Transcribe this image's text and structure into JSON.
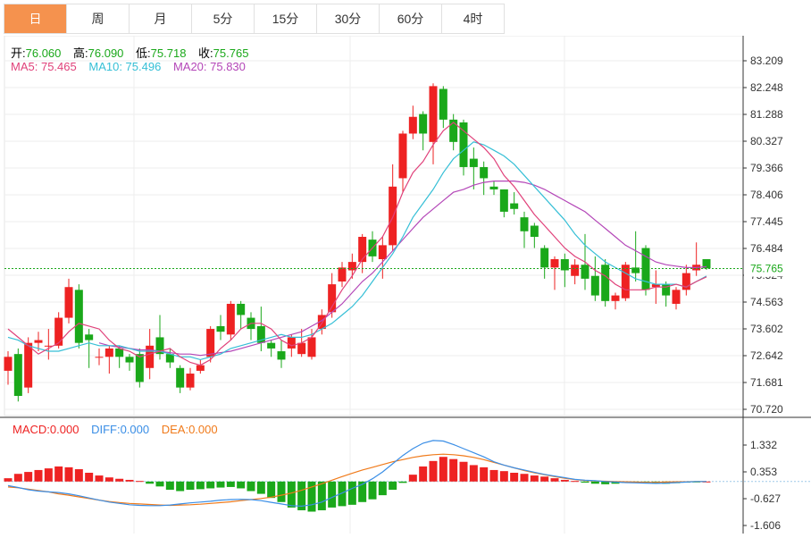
{
  "tabs": [
    {
      "label": "日",
      "active": true
    },
    {
      "label": "周",
      "active": false
    },
    {
      "label": "月",
      "active": false
    },
    {
      "label": "5分",
      "active": false
    },
    {
      "label": "15分",
      "active": false
    },
    {
      "label": "30分",
      "active": false
    },
    {
      "label": "60分",
      "active": false
    },
    {
      "label": "4时",
      "active": false
    }
  ],
  "ohlc_info": {
    "open_label": "开:",
    "open": "76.060",
    "high_label": "高:",
    "high": "76.090",
    "low_label": "低:",
    "low": "75.718",
    "close_label": "收:",
    "close": "75.765"
  },
  "ma_info": {
    "ma5_label": "MA5: ",
    "ma5": "75.465",
    "ma10_label": "MA10: ",
    "ma10": "75.496",
    "ma20_label": "MA20: ",
    "ma20": "75.830"
  },
  "macd_info": {
    "macd_label": "MACD:",
    "macd": "0.000",
    "diff_label": "DIFF:",
    "diff": "0.000",
    "dea_label": "DEA:",
    "dea": "0.000"
  },
  "colors": {
    "up": "#ee2222",
    "down": "#1aa81a",
    "ma5": "#e0417a",
    "ma10": "#35bfd6",
    "ma20": "#b447b8",
    "diff": "#3a8ee6",
    "dea": "#f07a1a",
    "price_line": "#1aa81a",
    "grid": "#eeeeee",
    "axis": "#333333"
  },
  "chart_data": {
    "type": "candlestick",
    "price_axis": {
      "ticks": [
        "83.209",
        "82.248",
        "81.288",
        "80.327",
        "79.366",
        "78.406",
        "77.445",
        "76.484",
        "75.524",
        "74.563",
        "73.602",
        "72.642",
        "71.681",
        "70.720"
      ],
      "range": [
        70.72,
        83.209
      ]
    },
    "current_price": "75.765",
    "candles": [
      [
        72.1,
        72.6,
        71.6,
        72.8
      ],
      [
        72.7,
        71.2,
        71.0,
        72.9
      ],
      [
        71.5,
        73.1,
        71.3,
        73.3
      ],
      [
        73.1,
        73.2,
        72.8,
        73.5
      ],
      [
        73.0,
        73.0,
        72.5,
        73.6
      ],
      [
        73.0,
        74.0,
        72.9,
        74.2
      ],
      [
        74.0,
        75.1,
        73.8,
        75.4
      ],
      [
        75.0,
        73.1,
        72.9,
        75.2
      ],
      [
        73.4,
        73.2,
        72.2,
        73.6
      ],
      [
        72.6,
        72.6,
        72.3,
        72.9
      ],
      [
        72.6,
        72.9,
        72.0,
        73.0
      ],
      [
        72.9,
        72.6,
        72.2,
        73.0
      ],
      [
        72.6,
        72.4,
        72.1,
        72.7
      ],
      [
        72.7,
        71.7,
        71.5,
        72.9
      ],
      [
        72.2,
        73.0,
        71.8,
        73.6
      ],
      [
        73.3,
        72.7,
        72.5,
        74.1
      ],
      [
        72.7,
        72.4,
        72.2,
        72.9
      ],
      [
        72.2,
        71.5,
        71.3,
        72.3
      ],
      [
        71.5,
        72.0,
        71.4,
        72.2
      ],
      [
        72.1,
        72.3,
        72.0,
        72.5
      ],
      [
        72.6,
        73.6,
        72.4,
        73.7
      ],
      [
        73.7,
        73.5,
        73.2,
        74.1
      ],
      [
        73.4,
        74.5,
        73.2,
        74.6
      ],
      [
        74.5,
        74.1,
        73.6,
        74.6
      ],
      [
        74.0,
        73.6,
        73.2,
        74.2
      ],
      [
        73.7,
        73.1,
        72.8,
        74.4
      ],
      [
        73.1,
        72.9,
        72.6,
        73.2
      ],
      [
        72.8,
        72.5,
        72.2,
        73.2
      ],
      [
        72.9,
        73.3,
        72.6,
        73.4
      ],
      [
        72.7,
        73.1,
        72.6,
        73.6
      ],
      [
        72.6,
        73.3,
        72.5,
        73.6
      ],
      [
        73.6,
        74.1,
        73.4,
        74.3
      ],
      [
        74.2,
        75.2,
        74.0,
        75.6
      ],
      [
        75.3,
        75.8,
        75.1,
        76.0
      ],
      [
        75.7,
        76.0,
        75.4,
        76.3
      ],
      [
        76.0,
        76.9,
        75.6,
        77.0
      ],
      [
        76.8,
        76.2,
        76.0,
        77.1
      ],
      [
        76.1,
        76.6,
        75.4,
        76.9
      ],
      [
        76.6,
        78.7,
        76.4,
        79.5
      ],
      [
        79.0,
        80.6,
        78.5,
        80.7
      ],
      [
        80.6,
        81.2,
        80.4,
        81.6
      ],
      [
        81.3,
        80.6,
        80.0,
        81.4
      ],
      [
        80.3,
        82.3,
        79.5,
        82.4
      ],
      [
        82.2,
        81.1,
        80.8,
        82.3
      ],
      [
        81.1,
        80.3,
        80.0,
        81.3
      ],
      [
        81.0,
        79.4,
        79.1,
        81.1
      ],
      [
        79.7,
        79.4,
        78.6,
        80.1
      ],
      [
        79.4,
        79.0,
        78.4,
        79.6
      ],
      [
        78.7,
        78.6,
        78.4,
        78.9
      ],
      [
        78.6,
        77.8,
        77.6,
        78.6
      ],
      [
        78.1,
        77.9,
        77.7,
        78.5
      ],
      [
        77.6,
        77.1,
        76.5,
        77.8
      ],
      [
        77.3,
        76.9,
        76.5,
        77.4
      ],
      [
        76.5,
        75.8,
        75.4,
        76.6
      ],
      [
        75.8,
        76.1,
        75.0,
        76.2
      ],
      [
        76.1,
        75.7,
        75.1,
        76.3
      ],
      [
        75.5,
        75.9,
        75.2,
        76.1
      ],
      [
        75.9,
        75.4,
        75.0,
        77.0
      ],
      [
        75.5,
        74.8,
        74.6,
        76.2
      ],
      [
        75.9,
        74.6,
        74.4,
        76.1
      ],
      [
        74.6,
        74.8,
        74.3,
        74.9
      ],
      [
        74.7,
        75.9,
        74.6,
        76.0
      ],
      [
        75.8,
        75.6,
        75.3,
        77.1
      ],
      [
        76.5,
        75.0,
        74.8,
        76.6
      ],
      [
        75.1,
        75.2,
        74.5,
        75.7
      ],
      [
        75.2,
        74.8,
        74.4,
        75.3
      ],
      [
        74.5,
        75.0,
        74.3,
        75.1
      ],
      [
        75.0,
        75.6,
        74.8,
        75.9
      ],
      [
        75.7,
        75.9,
        75.5,
        76.7
      ],
      [
        76.1,
        75.77,
        75.72,
        76.09
      ]
    ],
    "ma5": [
      73.6,
      73.3,
      73.0,
      72.7,
      72.9,
      73.1,
      73.5,
      73.8,
      73.7,
      73.6,
      73.2,
      72.9,
      72.8,
      72.6,
      72.7,
      72.8,
      72.9,
      72.6,
      72.4,
      72.3,
      72.5,
      72.9,
      73.2,
      73.6,
      73.8,
      73.8,
      73.6,
      73.2,
      73.0,
      73.1,
      73.3,
      73.8,
      74.4,
      75.0,
      75.5,
      76.1,
      76.5,
      76.9,
      77.6,
      78.5,
      79.2,
      79.6,
      80.2,
      80.7,
      81.0,
      80.7,
      80.4,
      80.1,
      79.7,
      79.1,
      78.7,
      78.2,
      77.7,
      77.3,
      76.9,
      76.5,
      76.2,
      76.0,
      75.7,
      75.5,
      75.2,
      75.0,
      75.0,
      75.0,
      75.1,
      75.1,
      75.2,
      75.1,
      75.3,
      75.465
    ],
    "ma10": [
      73.3,
      73.2,
      73.0,
      72.9,
      72.8,
      72.8,
      72.9,
      73.0,
      73.1,
      73.0,
      73.0,
      73.0,
      72.9,
      72.8,
      72.8,
      72.8,
      72.7,
      72.6,
      72.6,
      72.5,
      72.6,
      72.7,
      72.9,
      73.0,
      73.1,
      73.2,
      73.3,
      73.4,
      73.3,
      73.3,
      73.4,
      73.6,
      73.8,
      74.1,
      74.4,
      74.8,
      75.3,
      75.8,
      76.3,
      76.9,
      77.6,
      78.1,
      78.6,
      79.2,
      79.7,
      80.0,
      80.3,
      80.2,
      80.0,
      79.8,
      79.5,
      79.1,
      78.7,
      78.3,
      77.9,
      77.5,
      77.0,
      76.6,
      76.3,
      76.0,
      75.8,
      75.6,
      75.4,
      75.3,
      75.2,
      75.2,
      75.2,
      75.1,
      75.3,
      75.496
    ],
    "ma20": [
      null,
      null,
      null,
      null,
      null,
      null,
      null,
      null,
      null,
      73.1,
      73.0,
      72.95,
      72.9,
      72.85,
      72.85,
      72.8,
      72.75,
      72.7,
      72.7,
      72.65,
      72.7,
      72.75,
      72.8,
      72.9,
      73.0,
      73.1,
      73.2,
      73.3,
      73.4,
      73.5,
      73.7,
      73.9,
      74.2,
      74.5,
      74.9,
      75.3,
      75.6,
      76.0,
      76.4,
      76.8,
      77.2,
      77.6,
      77.9,
      78.2,
      78.5,
      78.6,
      78.75,
      78.85,
      78.9,
      78.9,
      78.9,
      78.85,
      78.75,
      78.6,
      78.4,
      78.2,
      78.0,
      77.8,
      77.5,
      77.2,
      76.9,
      76.6,
      76.4,
      76.2,
      76.0,
      75.9,
      75.85,
      75.8,
      75.8,
      75.83
    ],
    "macd": {
      "axis_ticks": [
        "1.332",
        "0.353",
        "-0.627",
        "-1.606"
      ],
      "range": [
        -1.606,
        1.332
      ],
      "hist": [
        0.12,
        0.28,
        0.35,
        0.42,
        0.48,
        0.55,
        0.52,
        0.45,
        0.32,
        0.22,
        0.15,
        0.1,
        0.06,
        0.02,
        -0.08,
        -0.18,
        -0.3,
        -0.35,
        -0.3,
        -0.28,
        -0.25,
        -0.22,
        -0.2,
        -0.25,
        -0.35,
        -0.45,
        -0.6,
        -0.75,
        -0.95,
        -1.05,
        -1.1,
        -1.05,
        -0.95,
        -0.9,
        -0.85,
        -0.75,
        -0.65,
        -0.5,
        -0.3,
        -0.05,
        0.25,
        0.55,
        0.75,
        0.9,
        0.82,
        0.72,
        0.6,
        0.52,
        0.42,
        0.38,
        0.32,
        0.28,
        0.22,
        0.18,
        0.12,
        0.06,
        0.02,
        -0.04,
        -0.08,
        -0.1,
        -0.08,
        -0.05,
        -0.02,
        -0.04,
        -0.06,
        -0.08,
        -0.06,
        -0.04,
        -0.02,
        0.0
      ],
      "diff": [
        -0.15,
        -0.22,
        -0.3,
        -0.35,
        -0.38,
        -0.4,
        -0.45,
        -0.52,
        -0.6,
        -0.68,
        -0.75,
        -0.8,
        -0.85,
        -0.87,
        -0.88,
        -0.88,
        -0.86,
        -0.82,
        -0.78,
        -0.75,
        -0.72,
        -0.68,
        -0.66,
        -0.65,
        -0.66,
        -0.7,
        -0.76,
        -0.82,
        -0.88,
        -0.9,
        -0.85,
        -0.75,
        -0.58,
        -0.42,
        -0.25,
        -0.1,
        0.1,
        0.35,
        0.65,
        0.95,
        1.2,
        1.4,
        1.5,
        1.48,
        1.35,
        1.2,
        1.05,
        0.9,
        0.72,
        0.6,
        0.5,
        0.42,
        0.34,
        0.26,
        0.2,
        0.14,
        0.08,
        0.05,
        0.03,
        0.0,
        -0.02,
        -0.04,
        -0.05,
        -0.06,
        -0.07,
        -0.06,
        -0.04,
        -0.02,
        0.0,
        0.0
      ],
      "dea": [
        -0.2,
        -0.23,
        -0.28,
        -0.33,
        -0.38,
        -0.45,
        -0.5,
        -0.56,
        -0.62,
        -0.68,
        -0.73,
        -0.77,
        -0.8,
        -0.82,
        -0.84,
        -0.86,
        -0.87,
        -0.86,
        -0.85,
        -0.83,
        -0.8,
        -0.77,
        -0.74,
        -0.7,
        -0.66,
        -0.62,
        -0.57,
        -0.5,
        -0.42,
        -0.32,
        -0.2,
        -0.08,
        0.05,
        0.18,
        0.3,
        0.42,
        0.52,
        0.62,
        0.72,
        0.8,
        0.88,
        0.94,
        0.98,
        1.0,
        0.98,
        0.94,
        0.88,
        0.8,
        0.7,
        0.6,
        0.5,
        0.4,
        0.32,
        0.25,
        0.18,
        0.12,
        0.07,
        0.04,
        0.02,
        0.01,
        0.0,
        -0.01,
        -0.02,
        -0.03,
        -0.03,
        -0.02,
        -0.01,
        -0.01,
        0.0,
        0.0
      ]
    }
  }
}
